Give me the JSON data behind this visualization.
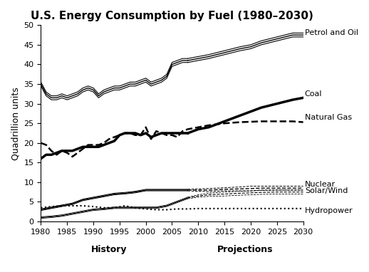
{
  "title": "U.S. Energy Consumption by Fuel (1980–2030)",
  "ylabel": "Quadrillion units",
  "xlabel_history": "History",
  "xlabel_projections": "Projections",
  "xlim": [
    1980,
    2030
  ],
  "ylim": [
    0,
    50
  ],
  "yticks": [
    0,
    5,
    10,
    15,
    20,
    25,
    30,
    35,
    40,
    45,
    50
  ],
  "xticks": [
    1980,
    1985,
    1990,
    1995,
    2000,
    2005,
    2010,
    2015,
    2020,
    2025,
    2030
  ],
  "projection_start": 2008,
  "petrol_center": [
    1980,
    1981,
    1982,
    1983,
    1984,
    1985,
    1986,
    1987,
    1988,
    1989,
    1990,
    1991,
    1992,
    1993,
    1994,
    1995,
    1996,
    1997,
    1998,
    1999,
    2000,
    2001,
    2002,
    2003,
    2004,
    2005,
    2006,
    2007,
    2008,
    2010,
    2012,
    2015,
    2018,
    2020,
    2022,
    2025,
    2028,
    2030
  ],
  "petrol_values": [
    35,
    32.5,
    31.5,
    31.5,
    32,
    31.5,
    32,
    32.5,
    33.5,
    34,
    33.5,
    32,
    33,
    33.5,
    34,
    34,
    34.5,
    35,
    35,
    35.5,
    36,
    35,
    35.5,
    36,
    37,
    40,
    40.5,
    41,
    41,
    41.5,
    42,
    43,
    44,
    44.5,
    45.5,
    46.5,
    47.5,
    47.5
  ],
  "petrol_upper": [
    35.5,
    33,
    32,
    32,
    32.5,
    32,
    32.5,
    33,
    34,
    34.5,
    34,
    32.5,
    33.5,
    34,
    34.5,
    34.5,
    35,
    35.5,
    35.5,
    36,
    36.5,
    35.5,
    36,
    36.5,
    37.5,
    40.5,
    41,
    41.5,
    41.5,
    42,
    42.5,
    43.5,
    44.5,
    45,
    46,
    47,
    48,
    48
  ],
  "petrol_lower": [
    34.5,
    32,
    31,
    31,
    31.5,
    31,
    31.5,
    32,
    33,
    33.5,
    33,
    31.5,
    32.5,
    33,
    33.5,
    33.5,
    34,
    34.5,
    34.5,
    35,
    35.5,
    34.5,
    35,
    35.5,
    36.5,
    39.5,
    40,
    40.5,
    40.5,
    41,
    41.5,
    42.5,
    43.5,
    44,
    45,
    46,
    47,
    47
  ],
  "coal_years": [
    1980,
    1981,
    1982,
    1983,
    1984,
    1985,
    1986,
    1987,
    1988,
    1989,
    1990,
    1991,
    1992,
    1993,
    1994,
    1995,
    1996,
    1997,
    1998,
    1999,
    2000,
    2001,
    2002,
    2003,
    2004,
    2005,
    2006,
    2007,
    2008,
    2010,
    2012,
    2015,
    2018,
    2020,
    2022,
    2025,
    2028,
    2030
  ],
  "coal_values": [
    16,
    17,
    17,
    17.5,
    18,
    18,
    18,
    18.5,
    19,
    19,
    19,
    19,
    19.5,
    20,
    20.5,
    22,
    22.5,
    22.5,
    22.5,
    22,
    22.5,
    21.5,
    22,
    22.5,
    22.5,
    22.5,
    22.5,
    22.5,
    22.5,
    23.5,
    24,
    25.5,
    27,
    28,
    29,
    30,
    31,
    31.5
  ],
  "gas_years": [
    1980,
    1981,
    1982,
    1983,
    1984,
    1985,
    1986,
    1987,
    1988,
    1989,
    1990,
    1991,
    1992,
    1993,
    1994,
    1995,
    1996,
    1997,
    1998,
    1999,
    2000,
    2001,
    2002,
    2003,
    2004,
    2005,
    2006,
    2007,
    2008,
    2010,
    2012,
    2015,
    2018,
    2020,
    2022,
    2025,
    2028,
    2030
  ],
  "gas_values": [
    20,
    19.5,
    18,
    17,
    18,
    17.5,
    16.5,
    17.5,
    18.5,
    19.5,
    19.5,
    19.5,
    20,
    21,
    21.5,
    22,
    22.5,
    22.5,
    22,
    22,
    24,
    21,
    23,
    22.5,
    22,
    22,
    21.5,
    23,
    23.5,
    24,
    24.5,
    25,
    25.3,
    25.4,
    25.5,
    25.5,
    25.5,
    25.3
  ],
  "nuclear_years": [
    1980,
    1982,
    1984,
    1986,
    1988,
    1990,
    1992,
    1994,
    1996,
    1998,
    2000,
    2002,
    2004,
    2006,
    2008,
    2010,
    2012,
    2015,
    2018,
    2020,
    2022,
    2025,
    2028,
    2030
  ],
  "nuclear_values": [
    3.0,
    3.5,
    4.0,
    4.5,
    5.5,
    6.0,
    6.5,
    7.0,
    7.2,
    7.5,
    8.0,
    8.0,
    8.0,
    8.0,
    8.0,
    8.0,
    8.0,
    8.2,
    8.3,
    8.4,
    8.5,
    8.5,
    8.5,
    8.5
  ],
  "nuclear_upper": [
    3.2,
    3.7,
    4.2,
    4.7,
    5.7,
    6.2,
    6.7,
    7.2,
    7.4,
    7.7,
    8.2,
    8.2,
    8.2,
    8.2,
    8.2,
    8.3,
    8.4,
    8.6,
    8.8,
    9.0,
    9.0,
    9.0,
    9.0,
    9.0
  ],
  "nuclear_lower": [
    2.8,
    3.3,
    3.8,
    4.3,
    5.3,
    5.8,
    6.3,
    6.8,
    7.0,
    7.3,
    7.8,
    7.8,
    7.8,
    7.8,
    7.8,
    7.7,
    7.6,
    7.8,
    7.8,
    7.8,
    8.0,
    8.0,
    8.0,
    8.0
  ],
  "solar_years": [
    1980,
    1982,
    1984,
    1986,
    1988,
    1990,
    1992,
    1994,
    1996,
    1998,
    2000,
    2002,
    2004,
    2006,
    2008,
    2010,
    2012,
    2015,
    2018,
    2020,
    2022,
    2025,
    2028,
    2030
  ],
  "solar_values": [
    1.0,
    1.2,
    1.5,
    2.0,
    2.5,
    3.0,
    3.2,
    3.5,
    3.5,
    3.5,
    3.5,
    3.5,
    4.0,
    5.0,
    6.0,
    6.5,
    6.8,
    7.0,
    7.2,
    7.3,
    7.4,
    7.5,
    7.5,
    7.5
  ],
  "solar_upper": [
    1.2,
    1.4,
    1.7,
    2.2,
    2.7,
    3.2,
    3.4,
    3.7,
    3.7,
    3.7,
    3.7,
    3.7,
    4.2,
    5.2,
    6.2,
    6.8,
    7.2,
    7.5,
    7.7,
    7.8,
    7.9,
    8.0,
    8.0,
    8.0
  ],
  "solar_lower": [
    0.8,
    1.0,
    1.3,
    1.8,
    2.3,
    2.8,
    3.0,
    3.3,
    3.3,
    3.3,
    3.3,
    3.3,
    3.8,
    4.8,
    5.8,
    6.2,
    6.4,
    6.5,
    6.7,
    6.8,
    6.9,
    7.0,
    7.0,
    7.0
  ],
  "hydro_years": [
    1980,
    1982,
    1984,
    1986,
    1988,
    1990,
    1992,
    1994,
    1996,
    1998,
    2000,
    2002,
    2004,
    2006,
    2008,
    2010,
    2012,
    2015,
    2018,
    2020,
    2022,
    2025,
    2028,
    2030
  ],
  "hydro_values": [
    3.5,
    3.8,
    4.0,
    4.0,
    4.0,
    3.8,
    3.5,
    3.5,
    4.0,
    3.5,
    3.2,
    3.0,
    3.0,
    3.2,
    3.2,
    3.3,
    3.3,
    3.3,
    3.3,
    3.3,
    3.3,
    3.3,
    3.3,
    3.3
  ],
  "background_color": "#ffffff",
  "title_fontsize": 11,
  "label_fontsize": 9,
  "tick_fontsize": 8,
  "annot_fontsize": 8
}
